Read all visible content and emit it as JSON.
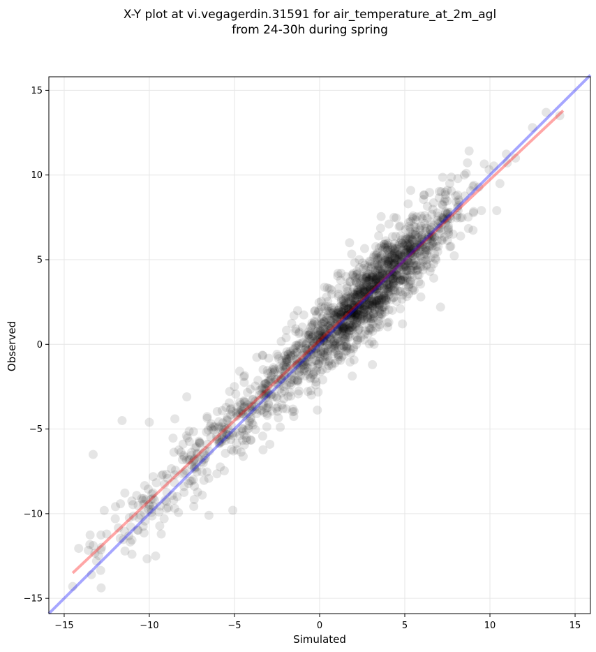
{
  "chart_data": {
    "type": "scatter",
    "title_lines": [
      "X-Y plot at vi.vegagerdin.31591 for air_temperature_at_2m_agl",
      "from 24-30h during spring"
    ],
    "xlabel": "Simulated",
    "ylabel": "Observed",
    "xlim": [
      -15.9,
      15.9
    ],
    "ylim": [
      -15.9,
      15.8
    ],
    "xticks": [
      -15,
      -10,
      -5,
      0,
      5,
      10,
      15
    ],
    "yticks": [
      -15,
      -10,
      -5,
      0,
      5,
      10,
      15
    ],
    "xtick_labels": [
      "−15",
      "−10",
      "−5",
      "0",
      "5",
      "10",
      "15"
    ],
    "ytick_labels": [
      "−15",
      "−10",
      "−5",
      "0",
      "5",
      "10",
      "15"
    ],
    "grid": true,
    "point_count": 1800,
    "marker_color": "#000000",
    "marker_alpha": 0.1,
    "sample_points": [
      [
        -14.5,
        -14.3
      ],
      [
        -13.3,
        -6.5
      ],
      [
        -13.4,
        -13.6
      ],
      [
        -13.1,
        -12.8
      ],
      [
        -12.5,
        -11.2
      ],
      [
        -12.0,
        -10.3
      ],
      [
        -11.6,
        -4.5
      ],
      [
        -10.0,
        -4.6
      ],
      [
        -9.3,
        -11.2
      ],
      [
        -8.5,
        -4.4
      ],
      [
        -7.8,
        -3.1
      ],
      [
        -6.5,
        -10.1
      ],
      [
        -5.1,
        -9.8
      ],
      [
        -4.5,
        -5.0
      ],
      [
        -3.0,
        -3.5
      ],
      [
        -1.3,
        -1.0
      ],
      [
        0.0,
        0.0
      ],
      [
        1.0,
        1.5
      ],
      [
        2.0,
        2.0
      ],
      [
        3.1,
        -1.2
      ],
      [
        3.5,
        3.8
      ],
      [
        4.5,
        5.0
      ],
      [
        5.2,
        8.3
      ],
      [
        6.0,
        6.2
      ],
      [
        7.1,
        2.2
      ],
      [
        8.5,
        10.0
      ],
      [
        9.5,
        7.9
      ],
      [
        10.4,
        7.9
      ],
      [
        11.5,
        11.0
      ],
      [
        12.5,
        12.8
      ],
      [
        13.3,
        13.7
      ],
      [
        14.1,
        13.5
      ]
    ],
    "lines": [
      {
        "color": "#ff0000",
        "alpha": 0.35,
        "x": [
          -14.5,
          14.3
        ],
        "y": [
          -13.5,
          13.8
        ]
      },
      {
        "color": "#0000ff",
        "alpha": 0.35,
        "x": [
          -15.9,
          15.9
        ],
        "y": [
          -15.9,
          15.9
        ]
      }
    ]
  }
}
